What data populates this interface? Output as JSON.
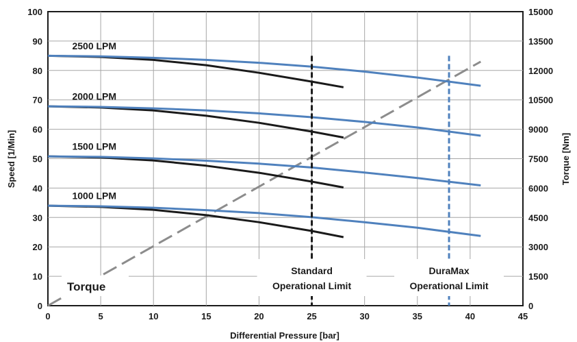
{
  "chart_data": {
    "type": "line",
    "xlabel": "Differential Pressure [bar]",
    "ylabel": "Speed [1/Min]",
    "y2label": "Torque [Nm]",
    "xlim": [
      0,
      45
    ],
    "ylim": [
      0,
      100
    ],
    "y2lim": [
      0,
      15000
    ],
    "xticks": [
      0,
      5,
      10,
      15,
      20,
      25,
      30,
      35,
      40,
      45
    ],
    "yticks": [
      0,
      10,
      20,
      30,
      40,
      50,
      60,
      70,
      80,
      90,
      100
    ],
    "y2ticks": [
      0,
      1500,
      3000,
      4500,
      6000,
      7500,
      9000,
      10500,
      12000,
      13500,
      15000
    ],
    "grid": true,
    "colors": {
      "standard": "#1a1a1a",
      "duramax": "#4f81bd",
      "torque": "#8c8c8c"
    },
    "series": [
      {
        "name": "2500 LPM",
        "type": "standard",
        "x": [
          0,
          5,
          10,
          15,
          20,
          25,
          28
        ],
        "y": [
          85,
          84.6,
          83.6,
          81.8,
          79.2,
          76.2,
          74.3
        ]
      },
      {
        "name": "2500 LPM",
        "type": "duramax",
        "x": [
          0,
          5,
          10,
          15,
          20,
          25,
          30,
          35,
          41
        ],
        "y": [
          85,
          84.8,
          84.3,
          83.6,
          82.6,
          81.3,
          79.6,
          77.6,
          74.8
        ]
      },
      {
        "name": "2000 LPM",
        "type": "standard",
        "x": [
          0,
          5,
          10,
          15,
          20,
          25,
          28
        ],
        "y": [
          67.8,
          67.4,
          66.4,
          64.6,
          62.2,
          59.2,
          57.2
        ]
      },
      {
        "name": "2000 LPM",
        "type": "duramax",
        "x": [
          0,
          5,
          10,
          15,
          20,
          25,
          30,
          35,
          41
        ],
        "y": [
          67.8,
          67.6,
          67.1,
          66.4,
          65.4,
          64.1,
          62.5,
          60.6,
          57.8
        ]
      },
      {
        "name": "1500 LPM",
        "type": "standard",
        "x": [
          0,
          5,
          10,
          15,
          20,
          25,
          28
        ],
        "y": [
          50.8,
          50.4,
          49.4,
          47.6,
          45.2,
          42.2,
          40.2
        ]
      },
      {
        "name": "1500 LPM",
        "type": "duramax",
        "x": [
          0,
          5,
          10,
          15,
          20,
          25,
          30,
          35,
          41
        ],
        "y": [
          50.8,
          50.6,
          50.1,
          49.3,
          48.3,
          47,
          45.3,
          43.4,
          40.9
        ]
      },
      {
        "name": "1000 LPM",
        "type": "standard",
        "x": [
          0,
          5,
          10,
          15,
          20,
          25,
          28
        ],
        "y": [
          34,
          33.6,
          32.6,
          30.8,
          28.4,
          25.4,
          23.3
        ]
      },
      {
        "name": "1000 LPM",
        "type": "duramax",
        "x": [
          0,
          5,
          10,
          15,
          20,
          25,
          30,
          35,
          41
        ],
        "y": [
          34,
          33.8,
          33.3,
          32.5,
          31.5,
          30.1,
          28.4,
          26.5,
          23.7
        ]
      },
      {
        "name": "Torque",
        "type": "torque",
        "axis": "y2",
        "x": [
          0,
          41
        ],
        "y": [
          0,
          12450
        ]
      }
    ],
    "curve_labels": [
      {
        "text": "2500 LPM",
        "x": 2.3,
        "y": 87.2
      },
      {
        "text": "2000 LPM",
        "x": 2.3,
        "y": 70.0
      },
      {
        "text": "1500 LPM",
        "x": 2.3,
        "y": 53.0
      },
      {
        "text": "1000 LPM",
        "x": 2.3,
        "y": 36.2
      }
    ],
    "limits": [
      {
        "x": 25,
        "type": "standard",
        "label_lines": [
          "Standard",
          "Operational Limit"
        ]
      },
      {
        "x": 38,
        "type": "duramax",
        "label_lines": [
          "DuraMax",
          "Operational Limit"
        ]
      }
    ],
    "torque_label": "Torque"
  }
}
